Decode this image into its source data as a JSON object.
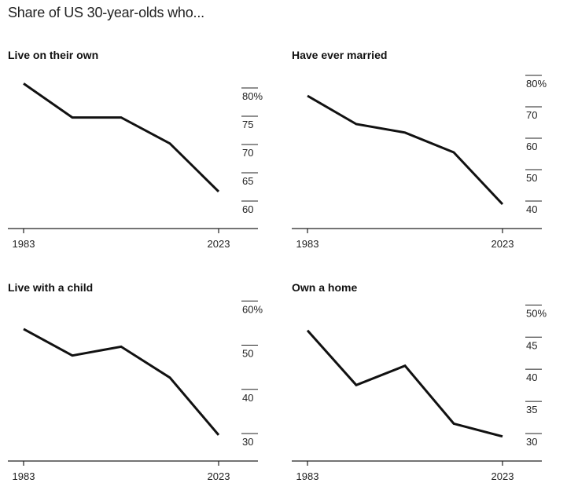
{
  "title": "Share of US 30-year-olds who...",
  "chart_data": [
    {
      "type": "line",
      "title": "Live on their own",
      "x": [
        1983,
        1993,
        2003,
        2013,
        2023
      ],
      "values": [
        83.0,
        77.0,
        77.0,
        72.4,
        63.9
      ],
      "ylim": [
        60,
        85
      ],
      "y_ticks": [
        60,
        65,
        70,
        75,
        80
      ],
      "y_tick_labels": [
        "60",
        "65",
        "70",
        "75",
        "80%"
      ],
      "x_tick_labels": [
        "1983",
        "2023"
      ],
      "line_color": "#111111"
    },
    {
      "type": "line",
      "title": "Have ever married",
      "x": [
        1983,
        1993,
        2003,
        2013,
        2023
      ],
      "values": [
        77.5,
        68.5,
        65.8,
        59.5,
        43.0
      ],
      "ylim": [
        40,
        85
      ],
      "y_ticks": [
        40,
        50,
        60,
        70,
        80
      ],
      "y_tick_labels": [
        "40",
        "50",
        "60",
        "70",
        "80%"
      ],
      "x_tick_labels": [
        "1983",
        "2023"
      ],
      "line_color": "#111111"
    },
    {
      "type": "line",
      "title": "Live with a child",
      "x": [
        1983,
        1993,
        2003,
        2013,
        2023
      ],
      "values": [
        56.5,
        50.5,
        52.5,
        45.5,
        32.5
      ],
      "ylim": [
        30,
        62
      ],
      "y_ticks": [
        30,
        40,
        50,
        60
      ],
      "y_tick_labels": [
        "30",
        "40",
        "50",
        "60%"
      ],
      "x_tick_labels": [
        "1983",
        "2023"
      ],
      "line_color": "#111111"
    },
    {
      "type": "line",
      "title": "Own a home",
      "x": [
        1983,
        1993,
        2003,
        2013,
        2023
      ],
      "values": [
        48.0,
        39.5,
        42.5,
        33.5,
        31.5
      ],
      "ylim": [
        30,
        52
      ],
      "y_ticks": [
        30,
        35,
        40,
        45,
        50
      ],
      "y_tick_labels": [
        "30",
        "35",
        "40",
        "45",
        "50%"
      ],
      "x_tick_labels": [
        "1983",
        "2023"
      ],
      "line_color": "#111111"
    }
  ]
}
